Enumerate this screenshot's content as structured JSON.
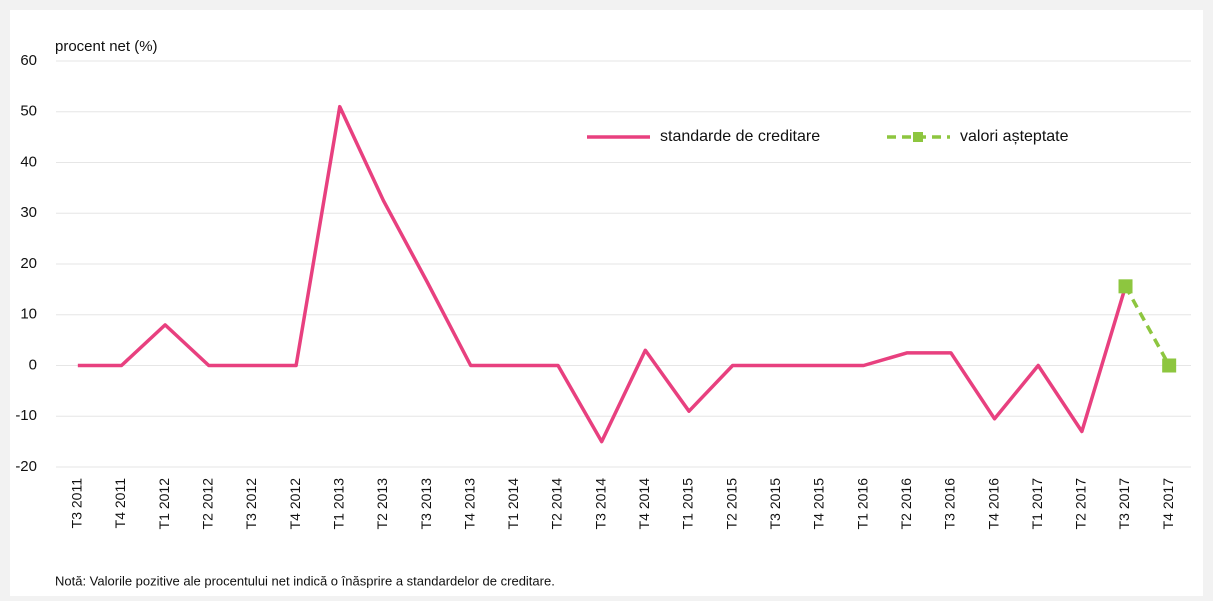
{
  "chart_data": {
    "type": "line",
    "y_axis_label": "procent net (%)",
    "note": "Notă: Valorile pozitive ale procentului net indică o înăsprire a standardelor de creditare.",
    "categories": [
      "T3 2011",
      "T4 2011",
      "T1 2012",
      "T2 2012",
      "T3 2012",
      "T4 2012",
      "T1 2013",
      "T2 2013",
      "T3 2013",
      "T4 2013",
      "T1 2014",
      "T2 2014",
      "T3 2014",
      "T4 2014",
      "T1 2015",
      "T2 2015",
      "T3 2015",
      "T4 2015",
      "T1 2016",
      "T2 2016",
      "T3 2016",
      "T4 2016",
      "T1 2017",
      "T2 2017",
      "T3 2017",
      "T4 2017"
    ],
    "series": [
      {
        "name": "standarde de creditare",
        "color": "#e8407f",
        "dashed": false,
        "markers": false,
        "values": [
          0,
          0,
          8,
          0,
          0,
          0,
          51,
          32.5,
          16.5,
          0,
          0,
          0,
          -15,
          3,
          -9,
          0,
          0,
          0,
          0,
          2.5,
          2.5,
          -10.5,
          0,
          -13,
          15.6,
          null
        ]
      },
      {
        "name": "valori așteptate",
        "color": "#8dc63f",
        "dashed": true,
        "markers": true,
        "values": [
          null,
          null,
          null,
          null,
          null,
          null,
          null,
          null,
          null,
          null,
          null,
          null,
          null,
          null,
          null,
          null,
          null,
          null,
          null,
          null,
          null,
          null,
          null,
          null,
          15.6,
          0
        ]
      }
    ],
    "ylim": [
      -20,
      60
    ],
    "yticks": [
      -20,
      -10,
      0,
      10,
      20,
      30,
      40,
      50,
      60
    ],
    "grid": true,
    "legend": "top-right"
  }
}
